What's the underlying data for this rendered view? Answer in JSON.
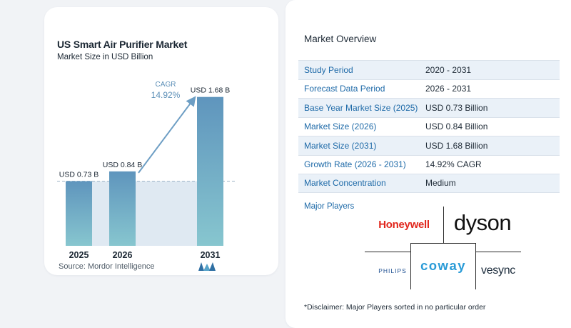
{
  "chart_data": {
    "type": "bar",
    "title": "US Smart Air Purifier Market",
    "subtitle": "Market Size in USD Billion",
    "categories": [
      "2025",
      "2026",
      "2031"
    ],
    "values": [
      0.73,
      0.84,
      1.68
    ],
    "value_labels": [
      "USD 0.73 B",
      "USD 0.84 B",
      "USD 1.68 B"
    ],
    "cagr_label": "CAGR",
    "cagr_value": "14.92%",
    "source": "Source:  Mordor Intelligence",
    "colors": {
      "bar_top": "#5f95bd",
      "bar_bottom": "#87c6cf",
      "base_band": "#dfe9f2",
      "arrow": "#6d9ec4",
      "cagr_text": "#5c8fb7"
    }
  },
  "overview": {
    "title": "Market Overview",
    "rows": [
      {
        "label": "Study Period",
        "value": "2020 - 2031"
      },
      {
        "label": "Forecast Data Period",
        "value": "2026 - 2031"
      },
      {
        "label": "Base Year Market Size (2025)",
        "value": "USD 0.73 Billion"
      },
      {
        "label": "Market Size (2026)",
        "value": "USD 0.84 Billion"
      },
      {
        "label": "Market Size (2031)",
        "value": "USD 1.68 Billion"
      },
      {
        "label": "Growth Rate (2026 - 2031)",
        "value": "14.92% CAGR"
      },
      {
        "label": "Market Concentration",
        "value": "Medium"
      }
    ]
  },
  "players": {
    "title": "Major Players",
    "logos": [
      "Honeywell",
      "dyson",
      "PHILIPS",
      "coway",
      "vesync"
    ]
  },
  "disclaimer": "*Disclaimer: Major Players sorted in no particular order"
}
